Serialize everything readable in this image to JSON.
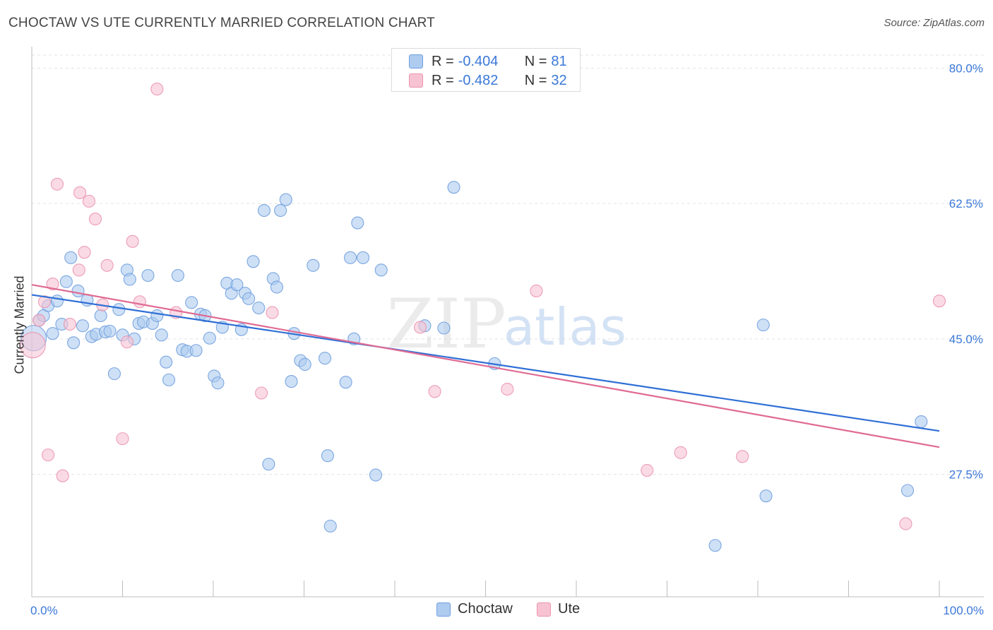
{
  "header": {
    "title": "CHOCTAW VS UTE CURRENTLY MARRIED CORRELATION CHART",
    "source": "Source: ZipAtlas.com"
  },
  "legend": {
    "rows": [
      {
        "r_label": "R =",
        "r_value": "-0.404",
        "n_label": "N =",
        "n_value": "81"
      },
      {
        "r_label": "R =",
        "r_value": "-0.482",
        "n_label": "N =",
        "n_value": "32"
      }
    ]
  },
  "bottom_legend": [
    "Choctaw",
    "Ute"
  ],
  "watermark": {
    "zip": "ZIP",
    "atlas": "atlas"
  },
  "colors": {
    "choctaw_fill": "#aecbf0",
    "choctaw_stroke": "#6f9fde",
    "choctaw_line": "#2f6fd6",
    "ute_fill": "#f7c3d3",
    "ute_stroke": "#eb93ae",
    "ute_line": "#e06a92",
    "tick_label": "#3b78d8",
    "grid": "#e3e3e3"
  },
  "chart_data": {
    "type": "scatter",
    "title": "CHOCTAW VS UTE CURRENTLY MARRIED CORRELATION CHART",
    "xlabel": "",
    "ylabel": "Currently Married",
    "xlim": [
      0,
      100
    ],
    "ylim": [
      12,
      83
    ],
    "x_tick_labels": [
      "0.0%",
      "100.0%"
    ],
    "y_ticks": [
      27.5,
      45.0,
      62.5,
      80.0
    ],
    "y_tick_labels": [
      "27.5%",
      "45.0%",
      "62.5%",
      "80.0%"
    ],
    "grid": true,
    "legend_placement": "top-center",
    "series": [
      {
        "name": "Choctaw",
        "trend": {
          "x": [
            0,
            100
          ],
          "y": [
            50.7,
            33.1
          ]
        },
        "points": [
          [
            0.2,
            45.1
          ],
          [
            0.8,
            47.4
          ],
          [
            1.3,
            48.0
          ],
          [
            1.8,
            49.3
          ],
          [
            2.3,
            45.7
          ],
          [
            2.8,
            49.9
          ],
          [
            3.3,
            46.9
          ],
          [
            3.8,
            52.4
          ],
          [
            4.3,
            55.5
          ],
          [
            4.6,
            44.5
          ],
          [
            5.1,
            51.2
          ],
          [
            5.6,
            46.7
          ],
          [
            6.1,
            50.0
          ],
          [
            6.6,
            45.3
          ],
          [
            7.1,
            45.6
          ],
          [
            7.6,
            48.0
          ],
          [
            8.1,
            45.9
          ],
          [
            8.6,
            46.0
          ],
          [
            9.1,
            40.5
          ],
          [
            9.6,
            48.8
          ],
          [
            10.0,
            45.5
          ],
          [
            10.5,
            53.9
          ],
          [
            10.8,
            52.7
          ],
          [
            11.3,
            45.0
          ],
          [
            11.8,
            47.0
          ],
          [
            12.3,
            47.2
          ],
          [
            12.8,
            53.2
          ],
          [
            13.3,
            47.0
          ],
          [
            13.8,
            48.0
          ],
          [
            14.3,
            45.5
          ],
          [
            14.8,
            42.0
          ],
          [
            15.1,
            39.7
          ],
          [
            16.1,
            53.2
          ],
          [
            16.6,
            43.6
          ],
          [
            17.1,
            43.4
          ],
          [
            17.6,
            49.7
          ],
          [
            18.1,
            43.5
          ],
          [
            18.6,
            48.2
          ],
          [
            19.1,
            48.0
          ],
          [
            19.6,
            45.1
          ],
          [
            20.1,
            40.2
          ],
          [
            20.5,
            39.3
          ],
          [
            21.0,
            46.5
          ],
          [
            21.5,
            52.2
          ],
          [
            22.0,
            50.9
          ],
          [
            22.6,
            52.0
          ],
          [
            23.1,
            46.2
          ],
          [
            23.5,
            50.9
          ],
          [
            23.9,
            50.2
          ],
          [
            24.4,
            55.0
          ],
          [
            25.0,
            49.0
          ],
          [
            25.6,
            61.6
          ],
          [
            26.1,
            28.8
          ],
          [
            26.6,
            52.8
          ],
          [
            27.0,
            51.7
          ],
          [
            28.0,
            63.0
          ],
          [
            27.4,
            61.6
          ],
          [
            28.6,
            39.5
          ],
          [
            28.9,
            45.7
          ],
          [
            29.6,
            42.2
          ],
          [
            30.1,
            41.7
          ],
          [
            31.0,
            54.5
          ],
          [
            32.3,
            42.5
          ],
          [
            32.6,
            29.9
          ],
          [
            32.9,
            20.8
          ],
          [
            34.6,
            39.4
          ],
          [
            35.1,
            55.5
          ],
          [
            35.5,
            45.0
          ],
          [
            35.9,
            60.0
          ],
          [
            36.5,
            55.5
          ],
          [
            37.9,
            27.4
          ],
          [
            38.5,
            53.9
          ],
          [
            43.3,
            46.7
          ],
          [
            45.4,
            46.4
          ],
          [
            46.5,
            64.6
          ],
          [
            51.0,
            41.8
          ],
          [
            75.3,
            18.3
          ],
          [
            80.9,
            24.7
          ],
          [
            80.6,
            46.8
          ],
          [
            96.5,
            25.4
          ],
          [
            98.0,
            34.3
          ]
        ]
      },
      {
        "name": "Ute",
        "trend": {
          "x": [
            0,
            100
          ],
          "y": [
            52.0,
            31.0
          ]
        },
        "points": [
          [
            0.1,
            44.2
          ],
          [
            0.8,
            47.4
          ],
          [
            1.4,
            49.8
          ],
          [
            1.8,
            30.0
          ],
          [
            2.3,
            52.1
          ],
          [
            2.8,
            65.0
          ],
          [
            3.4,
            27.3
          ],
          [
            4.2,
            46.9
          ],
          [
            5.2,
            53.9
          ],
          [
            5.3,
            63.9
          ],
          [
            5.8,
            56.2
          ],
          [
            6.3,
            62.8
          ],
          [
            7.0,
            60.5
          ],
          [
            7.8,
            49.4
          ],
          [
            8.3,
            54.5
          ],
          [
            10.0,
            32.1
          ],
          [
            10.5,
            44.6
          ],
          [
            11.1,
            57.6
          ],
          [
            11.9,
            49.8
          ],
          [
            13.8,
            77.3
          ],
          [
            15.9,
            48.4
          ],
          [
            25.3,
            38.0
          ],
          [
            26.5,
            48.4
          ],
          [
            42.8,
            46.5
          ],
          [
            44.4,
            38.2
          ],
          [
            52.4,
            38.5
          ],
          [
            55.6,
            51.2
          ],
          [
            67.8,
            28.0
          ],
          [
            71.5,
            30.3
          ],
          [
            78.3,
            29.8
          ],
          [
            96.3,
            21.1
          ],
          [
            100.0,
            49.9
          ]
        ]
      }
    ]
  }
}
